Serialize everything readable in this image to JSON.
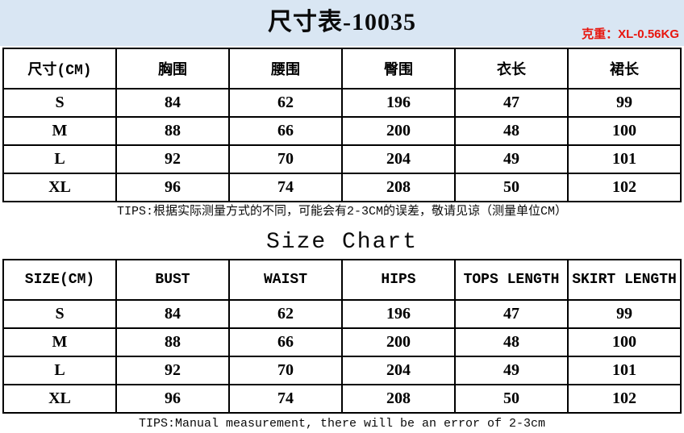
{
  "header": {
    "title": "尺寸表-10035",
    "weight_label": "克重：",
    "weight_value": "XL-0.56KG"
  },
  "section_title": "Size Chart",
  "table_cn": {
    "headers": [
      "尺寸(CM)",
      "胸围",
      "腰围",
      "臀围",
      "衣长",
      "裙长"
    ],
    "rows": [
      [
        "S",
        "84",
        "62",
        "196",
        "47",
        "99"
      ],
      [
        "M",
        "88",
        "66",
        "200",
        "48",
        "100"
      ],
      [
        "L",
        "92",
        "70",
        "204",
        "49",
        "101"
      ],
      [
        "XL",
        "96",
        "74",
        "208",
        "50",
        "102"
      ]
    ],
    "tips": "TIPS:根据实际测量方式的不同，可能会有2-3CM的误差，敬请见谅（测量单位CM）"
  },
  "table_en": {
    "headers": [
      "SIZE(CM)",
      "BUST",
      "WAIST",
      "HIPS",
      "TOPS LENGTH",
      "SKIRT LENGTH"
    ],
    "rows": [
      [
        "S",
        "84",
        "62",
        "196",
        "47",
        "99"
      ],
      [
        "M",
        "88",
        "66",
        "200",
        "48",
        "100"
      ],
      [
        "L",
        "92",
        "70",
        "204",
        "49",
        "101"
      ],
      [
        "XL",
        "96",
        "74",
        "208",
        "50",
        "102"
      ]
    ],
    "tips": "TIPS:Manual measurement, there will be an error of 2-3cm"
  },
  "colors": {
    "band_background": "#d9e6f3",
    "accent_red": "#e8150d",
    "table_border": "#000000"
  }
}
